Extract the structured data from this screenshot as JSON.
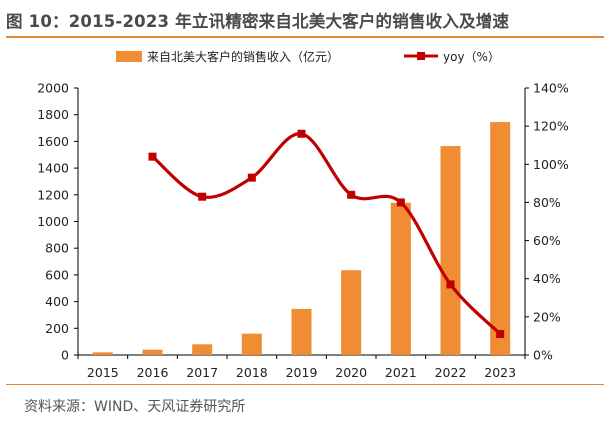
{
  "header": {
    "title": "图 10：2015-2023 年立讯精密来自北美大客户的销售收入及增速"
  },
  "footer": {
    "source": "资料来源：WIND、天风证券研究所"
  },
  "colors": {
    "bar": "#f08c33",
    "line": "#c00000",
    "rule": "#e0893a"
  },
  "chart_data": {
    "type": "bar",
    "categories": [
      "2015",
      "2016",
      "2017",
      "2018",
      "2019",
      "2020",
      "2021",
      "2022",
      "2023"
    ],
    "series": [
      {
        "name": "来自北美大客户的销售收入（亿元）",
        "type": "bar",
        "axis": "left",
        "values": [
          20,
          40,
          80,
          160,
          345,
          635,
          1140,
          1565,
          1745
        ]
      },
      {
        "name": "yoy（%）",
        "type": "line",
        "axis": "right",
        "values": [
          null,
          1.04,
          0.83,
          0.93,
          1.16,
          0.84,
          0.8,
          0.37,
          0.11
        ]
      }
    ],
    "y_left": {
      "lim": [
        0,
        2000
      ],
      "ticks": [
        "0",
        "200",
        "400",
        "600",
        "800",
        "1000",
        "1200",
        "1400",
        "1600",
        "1800",
        "2000"
      ]
    },
    "y_right": {
      "lim": [
        0,
        1.4
      ],
      "ticks": [
        "0%",
        "20%",
        "40%",
        "60%",
        "80%",
        "100%",
        "120%",
        "140%"
      ]
    },
    "legend": "top-center",
    "grid": false
  }
}
